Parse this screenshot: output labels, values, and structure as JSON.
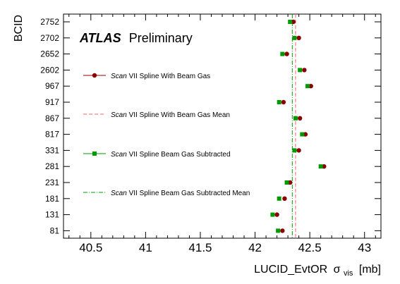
{
  "chart_data": {
    "type": "scatter",
    "title": "",
    "xlabel": "LUCID_EvtOR",
    "xlabel_symbol": "σ",
    "xlabel_sub": "vis",
    "xlabel_unit": "[mb]",
    "ylabel": "BCID",
    "xlim": [
      40.25,
      43.15
    ],
    "x_ticks": [
      "40.5",
      "41",
      "41.5",
      "42",
      "42.5",
      "43"
    ],
    "categories": [
      "81",
      "131",
      "181",
      "231",
      "281",
      "331",
      "817",
      "867",
      "917",
      "967",
      "2602",
      "2652",
      "2702",
      "2752"
    ],
    "experiment": "ATLAS",
    "experiment_status": "Preliminary",
    "legend_position": "top-left, inside plot",
    "colors": {
      "with_beam_gas": "#8b0000",
      "with_beam_gas_mean": "#ff6666",
      "subtracted": "#009a00",
      "subtracted_mean": "#009a00"
    },
    "series": [
      {
        "name": "Scan VII Spline With Beam Gas",
        "marker": "circle",
        "values": [
          42.25,
          42.2,
          42.27,
          42.32,
          42.63,
          42.4,
          42.46,
          42.41,
          42.26,
          42.51,
          42.45,
          42.29,
          42.4,
          42.35
        ]
      },
      {
        "name": "Scan VII Spline Beam Gas Subtracted",
        "marker": "square",
        "values": [
          42.21,
          42.16,
          42.22,
          42.29,
          42.6,
          42.36,
          42.43,
          42.37,
          42.22,
          42.48,
          42.41,
          42.25,
          42.36,
          42.32
        ]
      }
    ],
    "reference_lines": [
      {
        "name": "Scan VII Spline With Beam Gas Mean",
        "style": "dashed",
        "x": 42.37
      },
      {
        "name": "Scan VII Spline Beam Gas Subtracted Mean",
        "style": "dash-dot",
        "x": 42.34
      }
    ],
    "legend": [
      {
        "key": "with_beam_gas",
        "text_italic": "Scan",
        "text_rest": " VII Spline With Beam Gas"
      },
      {
        "key": "with_beam_gas_mean",
        "text_italic": "Scan",
        "text_rest": " VII Spline With Beam Gas Mean"
      },
      {
        "key": "subtracted",
        "text_italic": "Scan",
        "text_rest": " VII Spline Beam Gas Subtracted"
      },
      {
        "key": "subtracted_mean",
        "text_italic": "Scan",
        "text_rest": " VII Spline Beam Gas Subtracted Mean"
      }
    ]
  }
}
